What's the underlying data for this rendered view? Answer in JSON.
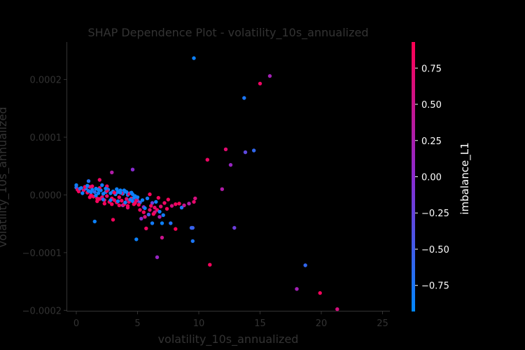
{
  "chart_data": {
    "type": "scatter",
    "title": "SHAP Dependence Plot - volatility_10s_annualized",
    "xlabel": "volatility_10s_annualized",
    "ylabel": "volatility_10s_annualized",
    "xlim": [
      -0.8,
      25.6
    ],
    "ylim": [
      -0.000202,
      0.000265
    ],
    "x_ticks": [
      0,
      5,
      10,
      15,
      20,
      25
    ],
    "x_tick_labels": [
      "0",
      "5",
      "10",
      "15",
      "20",
      "25"
    ],
    "y_ticks": [
      0.0002,
      0.0001,
      0.0,
      -0.0001,
      -0.0002
    ],
    "y_tick_labels": [
      "0.0002",
      "0.0001",
      "0.0000",
      "−0.0001",
      "−0.0002"
    ],
    "colorbar": {
      "label": "imbalance_L1",
      "range": [
        -0.93,
        0.93
      ],
      "ticks": [
        0.75,
        0.5,
        0.25,
        0.0,
        -0.25,
        -0.5,
        -0.75
      ],
      "tick_labels": [
        "0.75",
        "0.50",
        "0.25",
        "0.00",
        "−0.25",
        "−0.50",
        "−0.75"
      ],
      "low_color": "#0088ff",
      "mid_color": "#8a2ad0",
      "high_color": "#ff0051"
    },
    "points": [
      {
        "x": 9.6,
        "y": 0.000237,
        "c": -0.85
      },
      {
        "x": 15.8,
        "y": 0.000206,
        "c": 0.2
      },
      {
        "x": 15.0,
        "y": 0.000193,
        "c": 0.8
      },
      {
        "x": 13.7,
        "y": 0.000168,
        "c": -0.75
      },
      {
        "x": 12.2,
        "y": 7.9e-05,
        "c": 0.7
      },
      {
        "x": 14.5,
        "y": 7.7e-05,
        "c": -0.6
      },
      {
        "x": 13.8,
        "y": 7.4e-05,
        "c": -0.3
      },
      {
        "x": 10.7,
        "y": 6.1e-05,
        "c": 0.8
      },
      {
        "x": 12.6,
        "y": 5.2e-05,
        "c": 0.1
      },
      {
        "x": 4.6,
        "y": 4.4e-05,
        "c": 0.0
      },
      {
        "x": 2.9,
        "y": 3.9e-05,
        "c": 0.3
      },
      {
        "x": 11.9,
        "y": 1e-05,
        "c": 0.3
      },
      {
        "x": 9.7,
        "y": -6e-06,
        "c": 0.6
      },
      {
        "x": 9.6,
        "y": -1.2e-05,
        "c": 0.75
      },
      {
        "x": 9.2,
        "y": -1.5e-05,
        "c": 0.3
      },
      {
        "x": 8.8,
        "y": -1.8e-05,
        "c": 0.5
      },
      {
        "x": 8.4,
        "y": -1.5e-05,
        "c": 0.85
      },
      {
        "x": 8.6,
        "y": -2.2e-05,
        "c": -0.7
      },
      {
        "x": 8.1,
        "y": -1.6e-05,
        "c": 0.85
      },
      {
        "x": 7.8,
        "y": -1.9e-05,
        "c": 0.6
      },
      {
        "x": 7.5,
        "y": -8e-06,
        "c": 0.85
      },
      {
        "x": 7.7,
        "y": -4.9e-05,
        "c": -0.7
      },
      {
        "x": 7.1,
        "y": -3.5e-05,
        "c": -0.8
      },
      {
        "x": 6.9,
        "y": -2e-05,
        "c": 0.7
      },
      {
        "x": 6.8,
        "y": -3.8e-05,
        "c": 0.3
      },
      {
        "x": 6.6,
        "y": -2.6e-05,
        "c": 0.85
      },
      {
        "x": 6.4,
        "y": -3e-05,
        "c": 0.5
      },
      {
        "x": 6.2,
        "y": -1.4e-05,
        "c": -0.2
      },
      {
        "x": 6.0,
        "y": -2.6e-05,
        "c": 0.7
      },
      {
        "x": 5.9,
        "y": -3.4e-05,
        "c": -0.5
      },
      {
        "x": 5.6,
        "y": -3.8e-05,
        "c": 0.6
      },
      {
        "x": 5.5,
        "y": -2.1e-05,
        "c": 0.1
      },
      {
        "x": 5.3,
        "y": -4.1e-05,
        "c": 0.0
      },
      {
        "x": 5.2,
        "y": -1.3e-05,
        "c": -0.6
      },
      {
        "x": 5.7,
        "y": -5.8e-05,
        "c": 0.8
      },
      {
        "x": 6.2,
        "y": -4.9e-05,
        "c": -0.8
      },
      {
        "x": 6.0,
        "y": 1e-06,
        "c": 0.85
      },
      {
        "x": 6.4,
        "y": -2.2e-05,
        "c": 0.75
      },
      {
        "x": 6.7,
        "y": -5e-06,
        "c": 0.85
      },
      {
        "x": 7.0,
        "y": -4.9e-05,
        "c": -0.85
      },
      {
        "x": 7.0,
        "y": -7.4e-05,
        "c": 0.5
      },
      {
        "x": 6.6,
        "y": -0.000108,
        "c": 0.1
      },
      {
        "x": 4.9,
        "y": -7.7e-05,
        "c": -0.85
      },
      {
        "x": 8.1,
        "y": -5.9e-05,
        "c": 0.9
      },
      {
        "x": 9.4,
        "y": -5.7e-05,
        "c": -0.55
      },
      {
        "x": 9.5,
        "y": -5.7e-05,
        "c": -0.55
      },
      {
        "x": 9.5,
        "y": -8e-05,
        "c": -0.75
      },
      {
        "x": 12.9,
        "y": -5.7e-05,
        "c": -0.2
      },
      {
        "x": 10.9,
        "y": -0.000121,
        "c": 0.85
      },
      {
        "x": 18.7,
        "y": -0.000122,
        "c": -0.6
      },
      {
        "x": 18.0,
        "y": -0.000163,
        "c": 0.2
      },
      {
        "x": 19.9,
        "y": -0.00017,
        "c": 0.85
      },
      {
        "x": 21.3,
        "y": -0.000198,
        "c": 0.6
      },
      {
        "x": 1.5,
        "y": -4.6e-05,
        "c": -0.85
      },
      {
        "x": 3.0,
        "y": -4.3e-05,
        "c": 0.85
      },
      {
        "x": 4.2,
        "y": -2.2e-05,
        "c": 0.7
      },
      {
        "x": 5.0,
        "y": -1e-05,
        "c": -0.2
      },
      {
        "x": 3.8,
        "y": -1.8e-05,
        "c": 0.3
      },
      {
        "x": 2.1,
        "y": 1.7e-05,
        "c": -0.8
      },
      {
        "x": 1.0,
        "y": 2.4e-05,
        "c": -0.7
      },
      {
        "x": 1.9,
        "y": 2.6e-05,
        "c": 0.8
      },
      {
        "x": 2.5,
        "y": 1.5e-05,
        "c": 0.85
      },
      {
        "x": 0.0,
        "y": 1.7e-05,
        "c": -0.85
      },
      {
        "x": 0.0,
        "y": 1.3e-05,
        "c": -0.7
      },
      {
        "x": 0.1,
        "y": 9e-06,
        "c": 0.75
      },
      {
        "x": 0.4,
        "y": 1.2e-05,
        "c": -0.85
      },
      {
        "x": 0.6,
        "y": 8e-06,
        "c": 0.8
      },
      {
        "x": 0.8,
        "y": 1.1e-05,
        "c": -0.8
      },
      {
        "x": 0.9,
        "y": 4e-06,
        "c": 0.85
      },
      {
        "x": 1.1,
        "y": 1.4e-05,
        "c": 0.7
      },
      {
        "x": 1.2,
        "y": 0.0,
        "c": 0.85
      },
      {
        "x": 1.3,
        "y": 9e-06,
        "c": -0.85
      },
      {
        "x": 1.4,
        "y": -3e-06,
        "c": 0.85
      },
      {
        "x": 1.5,
        "y": 5e-06,
        "c": -0.6
      },
      {
        "x": 1.6,
        "y": 1.1e-05,
        "c": -0.85
      },
      {
        "x": 1.7,
        "y": -6e-06,
        "c": 0.85
      },
      {
        "x": 1.8,
        "y": 3e-06,
        "c": -0.85
      },
      {
        "x": 1.9,
        "y": -7e-06,
        "c": 0.85
      },
      {
        "x": 2.0,
        "y": 8e-06,
        "c": -0.85
      },
      {
        "x": 2.1,
        "y": -4e-06,
        "c": 0.7
      },
      {
        "x": 2.2,
        "y": 2e-06,
        "c": -0.8
      },
      {
        "x": 2.3,
        "y": -9e-06,
        "c": 0.85
      },
      {
        "x": 2.4,
        "y": 5e-06,
        "c": -0.85
      },
      {
        "x": 2.5,
        "y": -2e-06,
        "c": 0.8
      },
      {
        "x": 2.6,
        "y": 9e-06,
        "c": -0.85
      },
      {
        "x": 2.7,
        "y": -1.2e-05,
        "c": 0.85
      },
      {
        "x": 2.8,
        "y": 3e-06,
        "c": -0.85
      },
      {
        "x": 2.9,
        "y": -6e-06,
        "c": 0.85
      },
      {
        "x": 3.0,
        "y": 6e-06,
        "c": -0.8
      },
      {
        "x": 3.1,
        "y": -9e-06,
        "c": 0.85
      },
      {
        "x": 3.2,
        "y": 1e-06,
        "c": -0.85
      },
      {
        "x": 3.3,
        "y": -1.3e-05,
        "c": 0.85
      },
      {
        "x": 3.4,
        "y": 5e-06,
        "c": -0.85
      },
      {
        "x": 3.5,
        "y": -4e-06,
        "c": 0.8
      },
      {
        "x": 3.6,
        "y": 8e-06,
        "c": -0.85
      },
      {
        "x": 3.7,
        "y": -1e-05,
        "c": 0.85
      },
      {
        "x": 3.8,
        "y": 2e-06,
        "c": -0.85
      },
      {
        "x": 3.9,
        "y": -1.6e-05,
        "c": 0.85
      },
      {
        "x": 4.0,
        "y": 6e-06,
        "c": -0.85
      },
      {
        "x": 4.1,
        "y": -7e-06,
        "c": 0.7
      },
      {
        "x": 4.2,
        "y": 0.0,
        "c": -0.85
      },
      {
        "x": 4.3,
        "y": -1.2e-05,
        "c": 0.85
      },
      {
        "x": 4.4,
        "y": 3e-06,
        "c": -0.85
      },
      {
        "x": 4.5,
        "y": -6e-06,
        "c": 0.8
      },
      {
        "x": 4.6,
        "y": 1e-06,
        "c": -0.85
      },
      {
        "x": 4.7,
        "y": -1.6e-05,
        "c": 0.85
      },
      {
        "x": 4.8,
        "y": -2e-06,
        "c": -0.85
      },
      {
        "x": 4.9,
        "y": -9e-06,
        "c": 0.8
      },
      {
        "x": 5.0,
        "y": -4e-06,
        "c": -0.85
      },
      {
        "x": 0.2,
        "y": 6e-06,
        "c": 0.85
      },
      {
        "x": 0.5,
        "y": 3e-06,
        "c": -0.85
      },
      {
        "x": 0.7,
        "y": 1.4e-05,
        "c": 0.85
      },
      {
        "x": 1.0,
        "y": 7e-06,
        "c": -0.85
      },
      {
        "x": 1.3,
        "y": 1.5e-05,
        "c": 0.8
      },
      {
        "x": 1.6,
        "y": -1e-06,
        "c": -0.85
      },
      {
        "x": 1.9,
        "y": 1.2e-05,
        "c": 0.85
      },
      {
        "x": 2.2,
        "y": -8e-06,
        "c": -0.7
      },
      {
        "x": 2.5,
        "y": 7e-06,
        "c": 0.85
      },
      {
        "x": 2.8,
        "y": -9e-06,
        "c": -0.85
      },
      {
        "x": 3.1,
        "y": 4e-06,
        "c": 0.85
      },
      {
        "x": 3.4,
        "y": -1.1e-05,
        "c": -0.85
      },
      {
        "x": 3.7,
        "y": 3e-06,
        "c": 0.85
      },
      {
        "x": 4.0,
        "y": -1.3e-05,
        "c": -0.85
      },
      {
        "x": 4.3,
        "y": 2e-06,
        "c": 0.85
      },
      {
        "x": 4.6,
        "y": -1.1e-05,
        "c": -0.85
      },
      {
        "x": 0.3,
        "y": 1.1e-05,
        "c": -0.8
      },
      {
        "x": 0.9,
        "y": 1.6e-05,
        "c": -0.85
      },
      {
        "x": 1.2,
        "y": 5e-06,
        "c": -0.85
      },
      {
        "x": 1.8,
        "y": 9e-06,
        "c": -0.85
      },
      {
        "x": 2.4,
        "y": 1.1e-05,
        "c": -0.85
      },
      {
        "x": 3.6,
        "y": 4e-06,
        "c": -0.85
      },
      {
        "x": 4.5,
        "y": 4e-06,
        "c": -0.85
      },
      {
        "x": 1.1,
        "y": -4e-06,
        "c": 0.85
      },
      {
        "x": 1.7,
        "y": -1.1e-05,
        "c": 0.85
      },
      {
        "x": 2.3,
        "y": -1.5e-05,
        "c": 0.85
      },
      {
        "x": 2.9,
        "y": -1.6e-05,
        "c": 0.85
      },
      {
        "x": 3.5,
        "y": -1.8e-05,
        "c": 0.85
      },
      {
        "x": 4.2,
        "y": -1.9e-05,
        "c": 0.85
      },
      {
        "x": 5.1,
        "y": -1.7e-05,
        "c": 0.85
      },
      {
        "x": 5.4,
        "y": -9e-06,
        "c": -0.85
      },
      {
        "x": 5.8,
        "y": -6e-06,
        "c": -0.8
      },
      {
        "x": 6.1,
        "y": -1.9e-05,
        "c": 0.85
      },
      {
        "x": 6.5,
        "y": -1.2e-05,
        "c": -0.85
      },
      {
        "x": 5.2,
        "y": -2.6e-05,
        "c": 0.8
      },
      {
        "x": 5.6,
        "y": -2.3e-05,
        "c": -0.85
      },
      {
        "x": 6.3,
        "y": -3.3e-05,
        "c": 0.85
      },
      {
        "x": 5.5,
        "y": -3e-05,
        "c": 0.85
      },
      {
        "x": 6.8,
        "y": -2.9e-05,
        "c": -0.85
      },
      {
        "x": 7.2,
        "y": -1.4e-05,
        "c": 0.8
      },
      {
        "x": 7.4,
        "y": -2.4e-05,
        "c": 0.85
      },
      {
        "x": 3.3,
        "y": 1e-05,
        "c": -0.85
      },
      {
        "x": 3.9,
        "y": 8e-06,
        "c": -0.85
      },
      {
        "x": 4.1,
        "y": 5e-06,
        "c": -0.85
      },
      {
        "x": 4.4,
        "y": -8e-06,
        "c": -0.85
      },
      {
        "x": 4.8,
        "y": -1.4e-05,
        "c": 0.85
      },
      {
        "x": 4.7,
        "y": -5e-06,
        "c": -0.85
      }
    ]
  }
}
